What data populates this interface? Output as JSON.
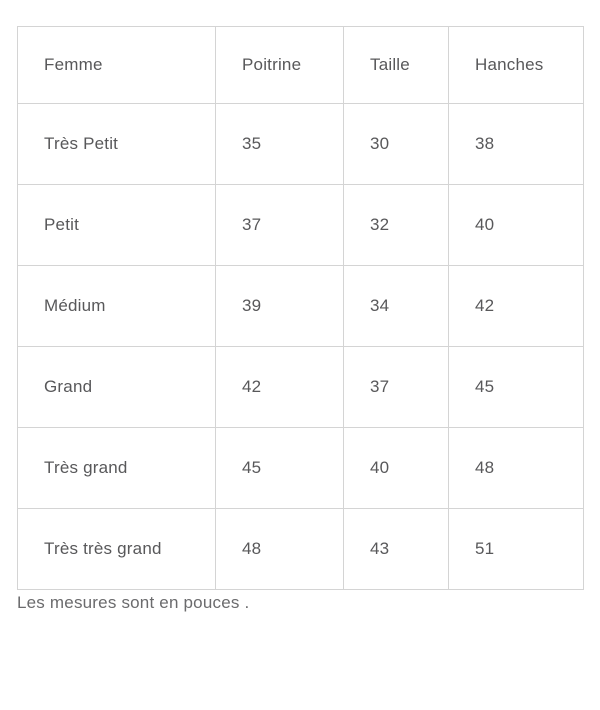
{
  "table": {
    "headers": [
      "Femme",
      "Poitrine",
      "Taille",
      "Hanches"
    ],
    "rows": [
      [
        "Très Petit",
        "35",
        "30",
        "38"
      ],
      [
        "Petit",
        "37",
        "32",
        "40"
      ],
      [
        "Médium",
        "39",
        "34",
        "42"
      ],
      [
        "Grand",
        "42",
        "37",
        "45"
      ],
      [
        "Très grand",
        "45",
        "40",
        "48"
      ],
      [
        "Très très grand",
        "48",
        "43",
        "51"
      ]
    ]
  },
  "note": "Les mesures sont en pouces .",
  "colors": {
    "text": "#58585a",
    "note_text": "#6b6b6d",
    "border": "#d4d4d4",
    "background": "#ffffff"
  }
}
